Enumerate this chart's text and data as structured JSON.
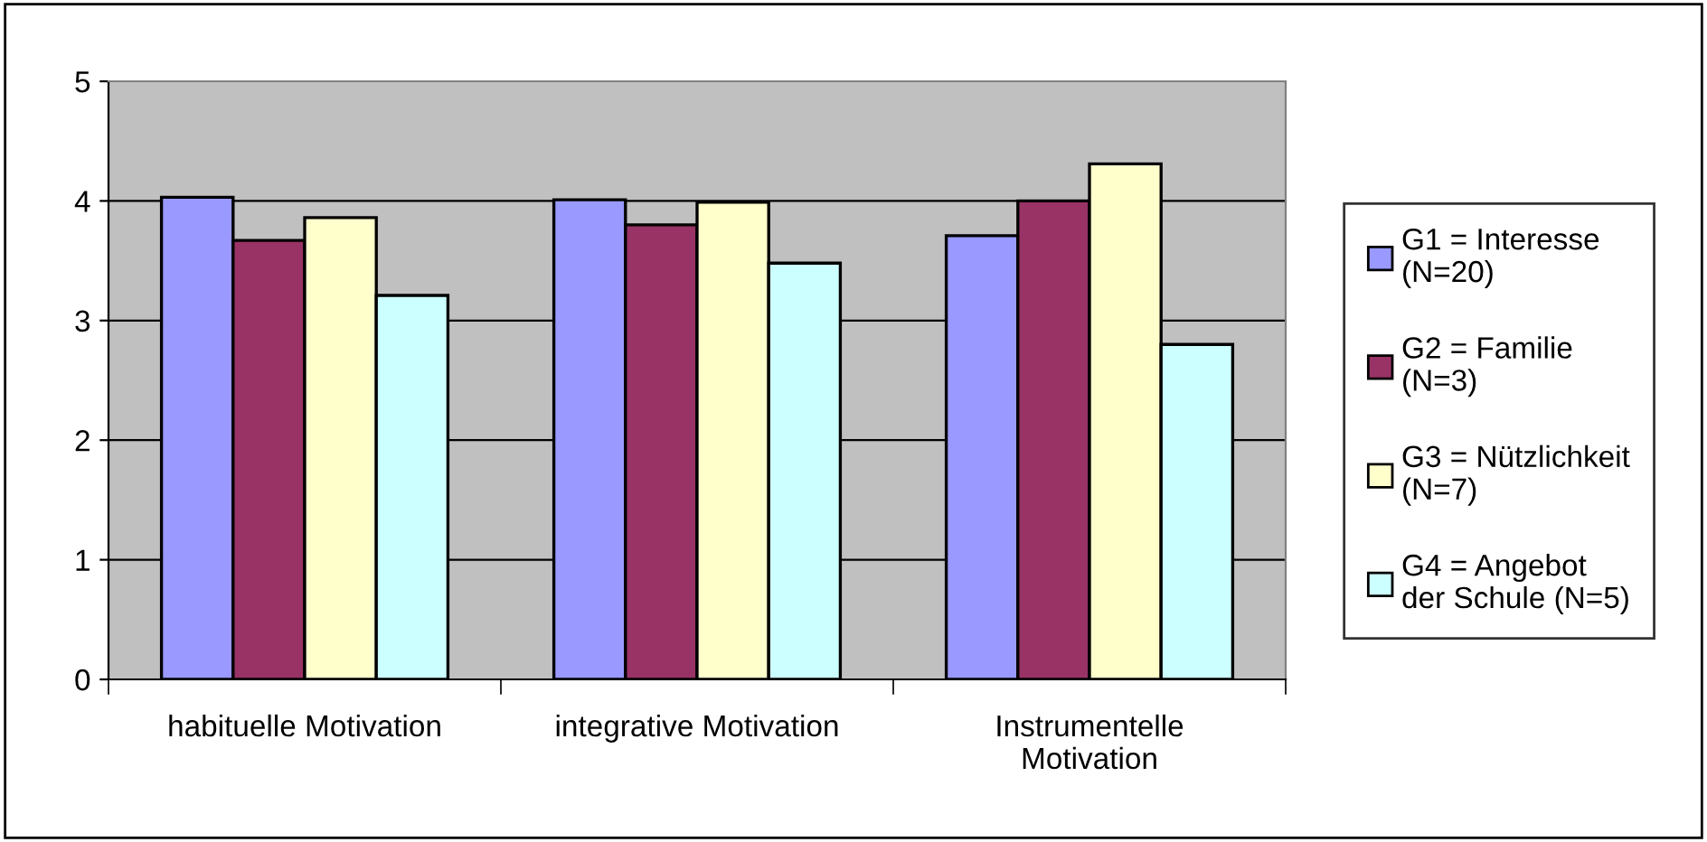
{
  "chart_data": {
    "type": "bar",
    "categories": [
      "habituelle Motivation",
      "integrative Motivation",
      "Instrumentelle\nMotivation"
    ],
    "series": [
      {
        "name": "G1 = Interesse\n(N=20)",
        "color": "#9999ff",
        "values": [
          4.03,
          4.01,
          3.71
        ]
      },
      {
        "name": "G2 = Familie\n(N=3)",
        "color": "#993366",
        "values": [
          3.67,
          3.8,
          4.0
        ]
      },
      {
        "name": "G3 = Nützlichkeit\n(N=7)",
        "color": "#ffffcc",
        "values": [
          3.86,
          3.99,
          4.31
        ]
      },
      {
        "name": "G4 = Angebot\nder Schule (N=5)",
        "color": "#ccffff",
        "values": [
          3.21,
          3.48,
          2.8
        ]
      }
    ],
    "ylim": [
      0,
      5
    ],
    "yticks": [
      0,
      1,
      2,
      3,
      4,
      5
    ],
    "grid": "y",
    "legend": "right"
  }
}
